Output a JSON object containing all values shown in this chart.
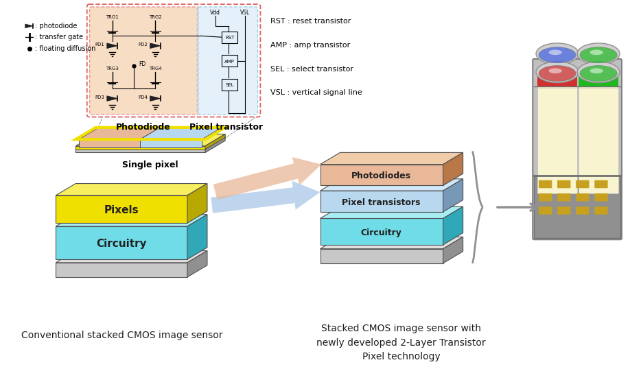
{
  "bg_color": "#ffffff",
  "legend_items": [
    ": photodiode",
    ": transfer gate",
    ": floating diffusion"
  ],
  "abbrev_labels": [
    "RST : reset transistor",
    "AMP : amp transistor",
    "SEL : select transistor",
    "VSL : vertical signal line"
  ],
  "layer_labels_conv": [
    "Pixels",
    "Circuitry"
  ],
  "layer_labels_new": [
    "Photodiodes",
    "Pixel transistors",
    "Circuitry"
  ],
  "bottom_label_left": "Conventional stacked CMOS image sensor",
  "bottom_label_right": "Stacked CMOS image sensor with\nnewly developed 2-Layer Transistor\nPixel technology",
  "single_pixel_label": "Single pixel",
  "photodiode_label": "Photodiode",
  "pixel_transistor_label": "Pixel transistor",
  "yellow_face": "#f0e000",
  "yellow_top": "#f8ef60",
  "yellow_side": "#b8a800",
  "cyan_face": "#70dce8",
  "cyan_top": "#a8ecf4",
  "cyan_side": "#30a8b8",
  "orange_face": "#e8b898",
  "orange_top": "#f0cca8",
  "orange_side": "#b87848",
  "blue_face": "#b8d8f0",
  "blue_top": "#d0e8f8",
  "blue_side": "#7898b8",
  "gray_face": "#c8c8c8",
  "gray_top": "#e0e0e0",
  "gray_side": "#909090",
  "gray_thin_face": "#d8d8d8",
  "gray_thin_top": "#ececec",
  "gray_thin_side": "#a0a0a0",
  "pd_bg": "#f5cba7",
  "px_bg": "#d6eaf8",
  "circuit_outer_color": "#e06060",
  "circuit_blue_color": "#7ab8d8",
  "arrow_orange": "#e8b898",
  "arrow_blue": "#a8c8e8"
}
